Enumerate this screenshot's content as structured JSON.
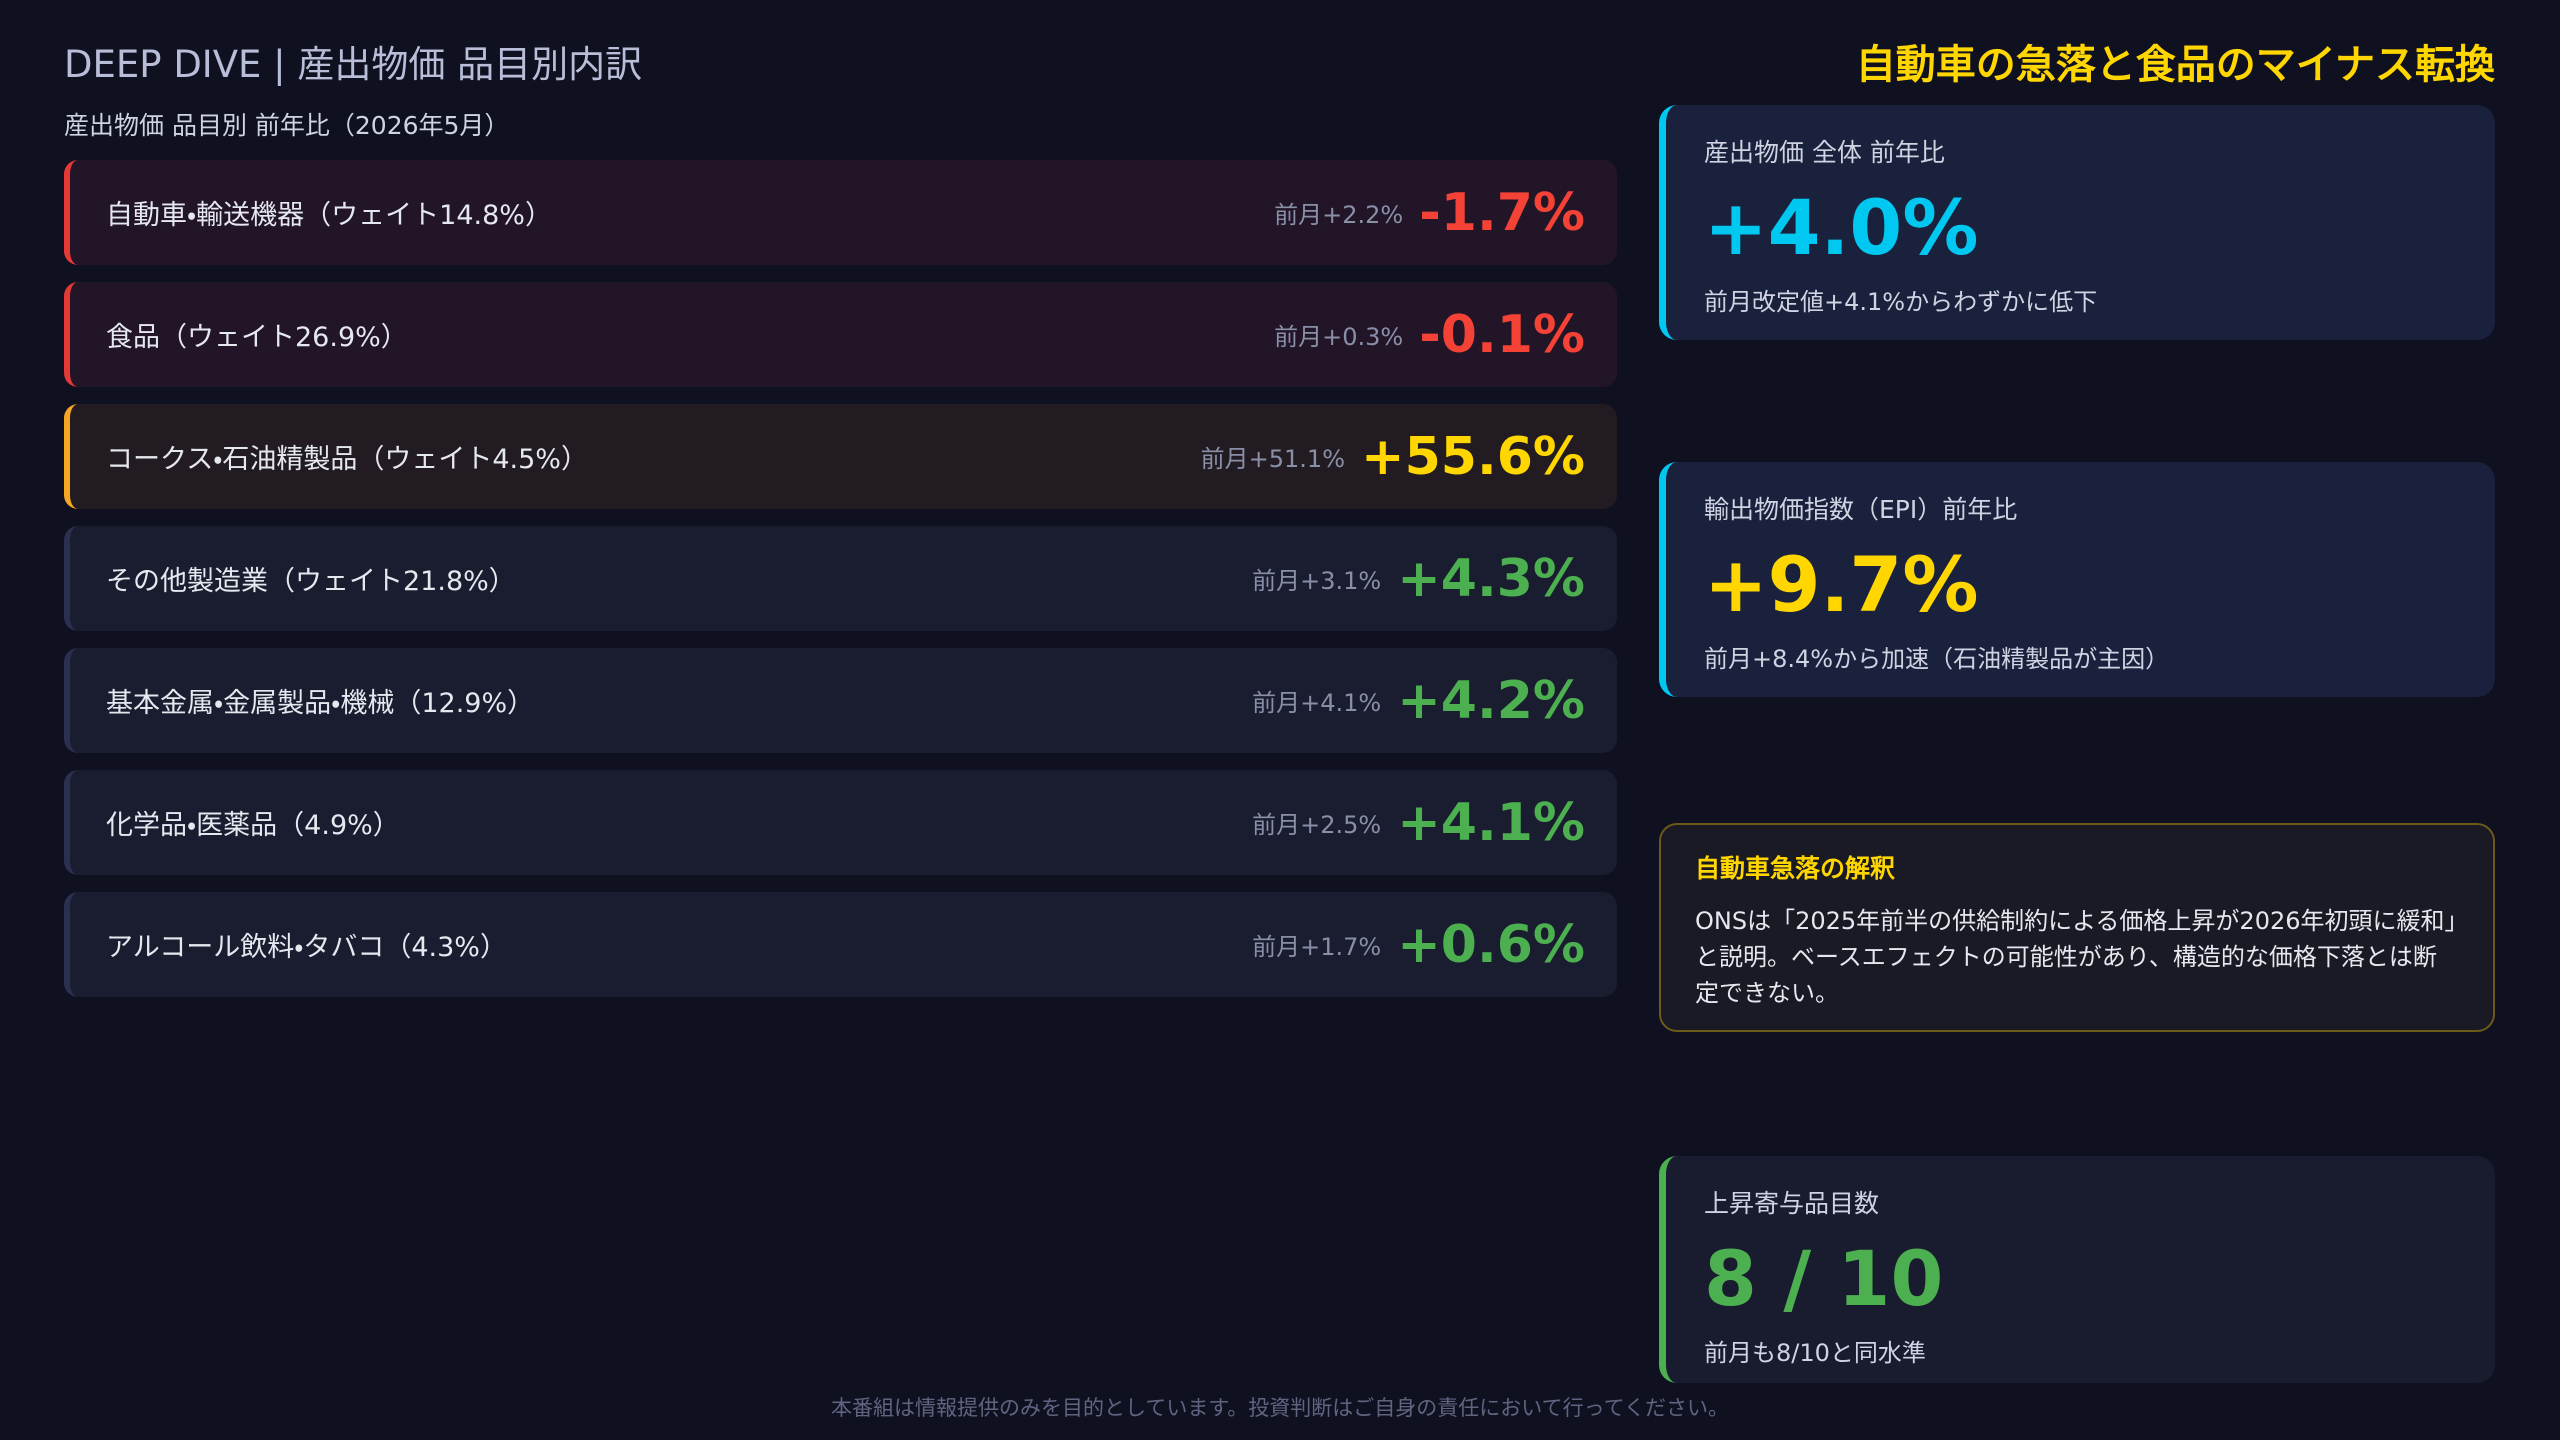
{
  "header": {
    "title": "DEEP DIVE | 産出物価 品目別内訳",
    "headline": "自動車の急落と食品のマイナス転換",
    "subtitle": "産出物価 品目別 前年比（2026年5月）"
  },
  "rows": [
    {
      "label": "自動車・輸送機器（ウェイト14.8%）",
      "prev": "前月+2.2%",
      "value": "-1.7%",
      "color": "#f44336",
      "accent": "#e53935",
      "bg": "#211527"
    },
    {
      "label": "食品（ウェイト26.9%）",
      "prev": "前月+0.3%",
      "value": "-0.1%",
      "color": "#f44336",
      "accent": "#e53935",
      "bg": "#211527"
    },
    {
      "label": "コークス・石油精製品（ウェイト4.5%）",
      "prev": "前月+51.1%",
      "value": "+55.6%",
      "color": "#ffd600",
      "accent": "#f5a623",
      "bg": "#221c22"
    },
    {
      "label": "その他製造業（ウェイト21.8%）",
      "prev": "前月+3.1%",
      "value": "+4.3%",
      "color": "#4caf50",
      "accent": "#2c3050",
      "bg": "#1a1c2f"
    },
    {
      "label": "基本金属・金属製品・機械（12.9%）",
      "prev": "前月+4.1%",
      "value": "+4.2%",
      "color": "#4caf50",
      "accent": "#2c3050",
      "bg": "#1a1c2f"
    },
    {
      "label": "化学品・医薬品（4.9%）",
      "prev": "前月+2.5%",
      "value": "+4.1%",
      "color": "#4caf50",
      "accent": "#2c3050",
      "bg": "#1a1c2f"
    },
    {
      "label": "アルコール飲料・タバコ（4.3%）",
      "prev": "前月+1.7%",
      "value": "+0.6%",
      "color": "#4caf50",
      "accent": "#2c3050",
      "bg": "#1a1c2f"
    }
  ],
  "cards": [
    {
      "label": "産出物価 全体 前年比",
      "value": "+4.0%",
      "note": "前月改定値+4.1%からわずかに低下",
      "color": "#00c8f0",
      "accent": "#00c8f0"
    },
    {
      "label": "輸出物価指数（EPI）前年比",
      "value": "+9.7%",
      "note": "前月+8.4%から加速（石油精製品が主因）",
      "color": "#ffd600",
      "accent": "#00c8f0"
    }
  ],
  "explain": {
    "title": "自動車急落の解釈",
    "body": "ONSは「2025年前半の供給制約による価格上昇が2026年初頭に緩和」と説明。ベースエフェクトの可能性があり、構造的な価格下落とは断定できない。"
  },
  "count": {
    "label": "上昇寄与品目数",
    "value": "8 / 10",
    "note": "前月も8/10と同水準",
    "color": "#4caf50",
    "accent": "#4caf50"
  },
  "footer": "本番組は情報提供のみを目的としています。投資判断はご自身の責任において行ってください。"
}
